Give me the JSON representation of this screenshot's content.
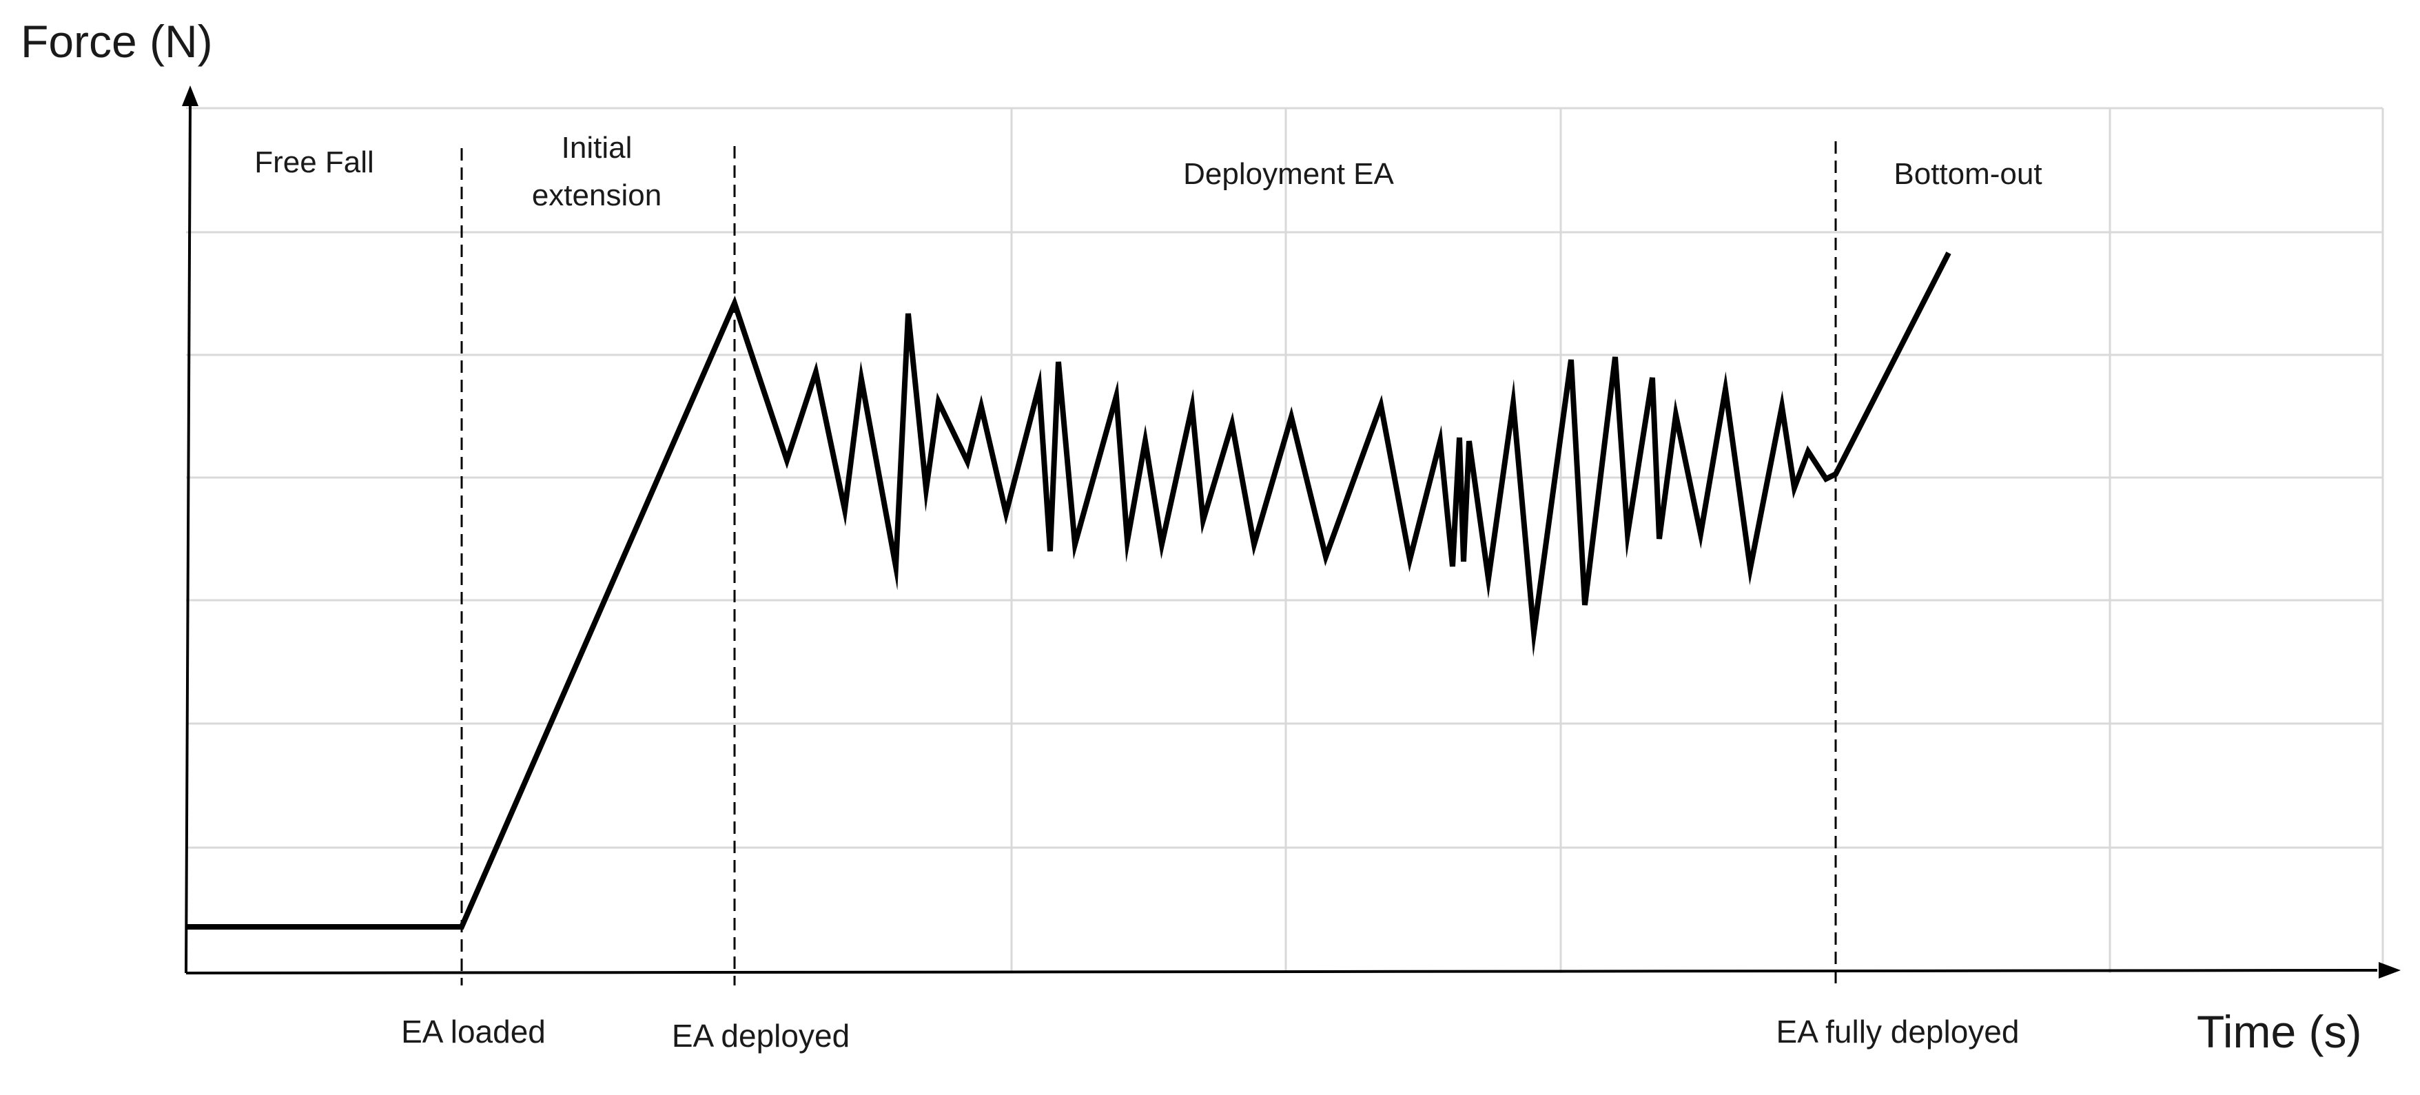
{
  "axes": {
    "y_label": "Force (N)",
    "x_label": "Time (s)"
  },
  "phases": [
    {
      "name": "free-fall",
      "lines": [
        "Free Fall"
      ]
    },
    {
      "name": "initial-extension",
      "lines": [
        "Initial",
        "extension"
      ]
    },
    {
      "name": "deployment-ea",
      "lines": [
        "Deployment EA"
      ]
    },
    {
      "name": "bottom-out",
      "lines": [
        "Bottom-out"
      ]
    }
  ],
  "events": [
    {
      "name": "ea-loaded",
      "label": "EA loaded"
    },
    {
      "name": "ea-deployed",
      "label": "EA deployed"
    },
    {
      "name": "ea-fully-deployed",
      "label": "EA fully deployed"
    }
  ],
  "colors": {
    "curve": "#000000",
    "grid": "#d9d9d9",
    "axis": "#000000",
    "text": "#1a1a1a"
  }
}
